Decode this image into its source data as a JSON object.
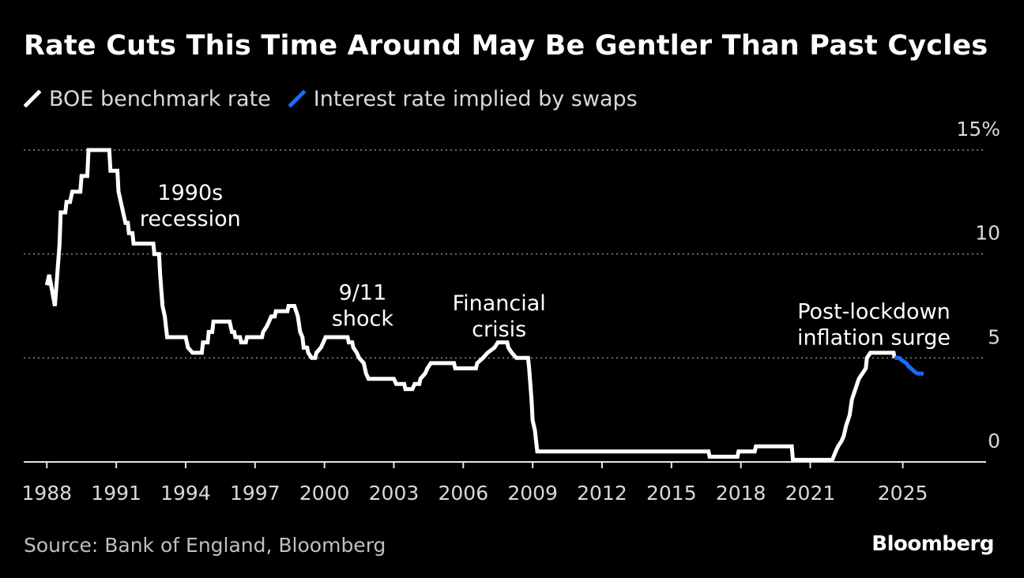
{
  "header": {
    "title": "Rate Cuts This Time Around May Be Gentler Than Past Cycles"
  },
  "legend": [
    {
      "label": "BOE benchmark rate",
      "color": "#ffffff"
    },
    {
      "label": "Interest rate implied by swaps",
      "color": "#1a6bff"
    }
  ],
  "footer": {
    "source": "Source: Bank of England, Bloomberg",
    "brand": "Bloomberg"
  },
  "chart_data": {
    "type": "line",
    "title": "Rate Cuts This Time Around May Be Gentler Than Past Cycles",
    "xlabel": "",
    "ylabel": "",
    "xlim": [
      1987,
      2028.6
    ],
    "ylim": [
      0,
      15
    ],
    "x_ticks": [
      {
        "value": 1988,
        "label": "1988"
      },
      {
        "value": 1991,
        "label": "1991"
      },
      {
        "value": 1994,
        "label": "1994"
      },
      {
        "value": 1997,
        "label": "1997"
      },
      {
        "value": 2000,
        "label": "2000"
      },
      {
        "value": 2003,
        "label": "2003"
      },
      {
        "value": 2006,
        "label": "2006"
      },
      {
        "value": 2009,
        "label": "2009"
      },
      {
        "value": 2012,
        "label": "2012"
      },
      {
        "value": 2015,
        "label": "2015"
      },
      {
        "value": 2018,
        "label": "2018"
      },
      {
        "value": 2021,
        "label": "2021"
      },
      {
        "value": 2025,
        "label": "2025"
      }
    ],
    "y_ticks": [
      {
        "value": 15,
        "label": "15%"
      },
      {
        "value": 10,
        "label": "10"
      },
      {
        "value": 5,
        "label": "5"
      },
      {
        "value": 0,
        "label": "0"
      }
    ],
    "grid": "horizontal dotted",
    "annotations": [
      {
        "lines": [
          "1990s",
          "recession"
        ],
        "x": 1994.2,
        "y": 12.6,
        "align": "middle"
      },
      {
        "lines": [
          "9/11",
          "shock"
        ],
        "x": 2001.65,
        "y": 7.8,
        "align": "middle"
      },
      {
        "lines": [
          "Financial",
          "crisis"
        ],
        "x": 2007.55,
        "y": 7.3,
        "align": "middle"
      },
      {
        "lines": [
          "Post-lockdown",
          "inflation surge"
        ],
        "x": 2023.75,
        "y": 6.9,
        "align": "middle"
      }
    ],
    "series": [
      {
        "name": "BOE benchmark rate",
        "color": "#ffffff",
        "points": [
          [
            1988.0,
            8.5
          ],
          [
            1988.1,
            9.0
          ],
          [
            1988.35,
            7.5
          ],
          [
            1988.55,
            10.5
          ],
          [
            1988.6,
            12.0
          ],
          [
            1988.8,
            12.0
          ],
          [
            1988.85,
            12.5
          ],
          [
            1989.0,
            12.5
          ],
          [
            1989.1,
            13.0
          ],
          [
            1989.45,
            13.0
          ],
          [
            1989.5,
            13.75
          ],
          [
            1989.75,
            13.75
          ],
          [
            1989.8,
            15.0
          ],
          [
            1990.7,
            15.0
          ],
          [
            1990.75,
            14.0
          ],
          [
            1991.05,
            14.0
          ],
          [
            1991.1,
            13.0
          ],
          [
            1991.25,
            12.25
          ],
          [
            1991.4,
            11.5
          ],
          [
            1991.5,
            11.5
          ],
          [
            1991.55,
            11.0
          ],
          [
            1991.7,
            11.0
          ],
          [
            1991.75,
            10.5
          ],
          [
            1992.2,
            10.5
          ],
          [
            1992.6,
            10.5
          ],
          [
            1992.65,
            10.0
          ],
          [
            1992.85,
            10.0
          ],
          [
            1992.9,
            9.0
          ],
          [
            1993.0,
            7.5
          ],
          [
            1993.1,
            7.0
          ],
          [
            1993.2,
            6.0
          ],
          [
            1994.0,
            6.0
          ],
          [
            1994.1,
            5.5
          ],
          [
            1994.3,
            5.25
          ],
          [
            1994.7,
            5.25
          ],
          [
            1994.75,
            5.75
          ],
          [
            1994.95,
            5.75
          ],
          [
            1995.0,
            6.25
          ],
          [
            1995.15,
            6.25
          ],
          [
            1995.2,
            6.75
          ],
          [
            1995.9,
            6.75
          ],
          [
            1996.0,
            6.25
          ],
          [
            1996.1,
            6.25
          ],
          [
            1996.15,
            6.0
          ],
          [
            1996.35,
            6.0
          ],
          [
            1996.4,
            5.75
          ],
          [
            1996.6,
            5.75
          ],
          [
            1996.65,
            6.0
          ],
          [
            1997.3,
            6.0
          ],
          [
            1997.35,
            6.25
          ],
          [
            1997.5,
            6.5
          ],
          [
            1997.6,
            6.75
          ],
          [
            1997.7,
            7.0
          ],
          [
            1997.85,
            7.0
          ],
          [
            1997.9,
            7.25
          ],
          [
            1998.4,
            7.25
          ],
          [
            1998.45,
            7.5
          ],
          [
            1998.7,
            7.5
          ],
          [
            1998.85,
            7.0
          ],
          [
            1998.95,
            6.25
          ],
          [
            1999.05,
            6.0
          ],
          [
            1999.1,
            5.5
          ],
          [
            1999.25,
            5.5
          ],
          [
            1999.3,
            5.25
          ],
          [
            1999.45,
            5.0
          ],
          [
            1999.6,
            5.0
          ],
          [
            1999.65,
            5.25
          ],
          [
            1999.85,
            5.5
          ],
          [
            1999.95,
            5.75
          ],
          [
            2000.05,
            6.0
          ],
          [
            2001.0,
            6.0
          ],
          [
            2001.05,
            5.75
          ],
          [
            2001.2,
            5.75
          ],
          [
            2001.25,
            5.5
          ],
          [
            2001.4,
            5.25
          ],
          [
            2001.5,
            5.0
          ],
          [
            2001.7,
            4.75
          ],
          [
            2001.8,
            4.25
          ],
          [
            2001.9,
            4.0
          ],
          [
            2003.0,
            4.0
          ],
          [
            2003.1,
            3.75
          ],
          [
            2003.45,
            3.75
          ],
          [
            2003.5,
            3.5
          ],
          [
            2003.8,
            3.5
          ],
          [
            2003.9,
            3.75
          ],
          [
            2004.1,
            3.75
          ],
          [
            2004.15,
            4.0
          ],
          [
            2004.35,
            4.25
          ],
          [
            2004.45,
            4.5
          ],
          [
            2004.6,
            4.75
          ],
          [
            2005.6,
            4.75
          ],
          [
            2005.65,
            4.5
          ],
          [
            2006.55,
            4.5
          ],
          [
            2006.6,
            4.75
          ],
          [
            2006.85,
            5.0
          ],
          [
            2007.05,
            5.25
          ],
          [
            2007.35,
            5.5
          ],
          [
            2007.5,
            5.75
          ],
          [
            2007.9,
            5.75
          ],
          [
            2007.95,
            5.5
          ],
          [
            2008.1,
            5.25
          ],
          [
            2008.3,
            5.0
          ],
          [
            2008.8,
            5.0
          ],
          [
            2008.85,
            4.5
          ],
          [
            2008.95,
            3.0
          ],
          [
            2009.0,
            2.0
          ],
          [
            2009.1,
            1.5
          ],
          [
            2009.15,
            1.0
          ],
          [
            2009.2,
            0.5
          ],
          [
            2016.6,
            0.5
          ],
          [
            2016.65,
            0.25
          ],
          [
            2017.85,
            0.25
          ],
          [
            2017.9,
            0.5
          ],
          [
            2018.6,
            0.5
          ],
          [
            2018.65,
            0.75
          ],
          [
            2020.2,
            0.75
          ],
          [
            2020.25,
            0.1
          ],
          [
            2021.95,
            0.1
          ],
          [
            2022.1,
            0.5
          ],
          [
            2022.2,
            0.75
          ],
          [
            2022.35,
            1.0
          ],
          [
            2022.45,
            1.25
          ],
          [
            2022.55,
            1.75
          ],
          [
            2022.7,
            2.25
          ],
          [
            2022.8,
            3.0
          ],
          [
            2022.95,
            3.5
          ],
          [
            2023.1,
            4.0
          ],
          [
            2023.25,
            4.25
          ],
          [
            2023.4,
            4.5
          ],
          [
            2023.45,
            5.0
          ],
          [
            2023.6,
            5.25
          ],
          [
            2024.6,
            5.25
          ],
          [
            2024.65,
            5.0
          ]
        ]
      },
      {
        "name": "Interest rate implied by swaps",
        "color": "#1a6bff",
        "points": [
          [
            2024.65,
            5.0
          ],
          [
            2024.85,
            5.0
          ],
          [
            2024.95,
            4.9
          ],
          [
            2025.15,
            4.75
          ],
          [
            2025.25,
            4.6
          ],
          [
            2025.35,
            4.5
          ],
          [
            2025.45,
            4.4
          ],
          [
            2025.55,
            4.3
          ],
          [
            2025.65,
            4.25
          ],
          [
            2025.9,
            4.25
          ]
        ]
      }
    ]
  }
}
